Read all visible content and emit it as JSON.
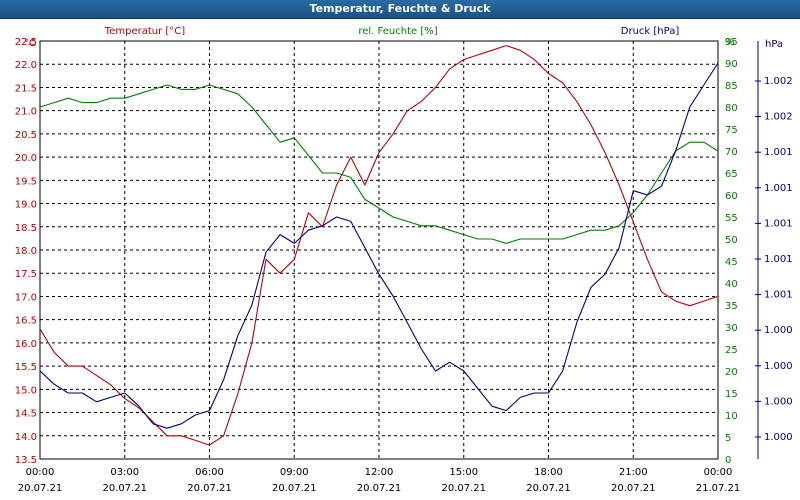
{
  "window": {
    "title": "Temperatur, Feuchte & Druck"
  },
  "chart_data": {
    "type": "line",
    "title": "Temperatur, Feuchte & Druck",
    "grid": true,
    "x_range": [
      "00:00",
      "24:00"
    ],
    "x_ticks": [
      {
        "time": "00:00",
        "date": "20.07.21"
      },
      {
        "time": "03:00",
        "date": "20.07.21"
      },
      {
        "time": "06:00",
        "date": "20.07.21"
      },
      {
        "time": "09:00",
        "date": "20.07.21"
      },
      {
        "time": "12:00",
        "date": "20.07.21"
      },
      {
        "time": "15:00",
        "date": "20.07.21"
      },
      {
        "time": "18:00",
        "date": "20.07.21"
      },
      {
        "time": "21:00",
        "date": "20.07.21"
      },
      {
        "time": "00:00",
        "date": "21.07.21"
      }
    ],
    "axes": {
      "temperature": {
        "label": "Temperatur [°C]",
        "unit": "°C",
        "color": "#c00000",
        "range": [
          13.5,
          22.5
        ],
        "ticks": [
          "13.5",
          "14.0",
          "14.5",
          "15.0",
          "15.5",
          "16.0",
          "16.5",
          "17.0",
          "17.5",
          "18.0",
          "18.5",
          "19.0",
          "19.5",
          "20.0",
          "20.5",
          "21.0",
          "21.5",
          "22.0",
          "22.5"
        ]
      },
      "humidity": {
        "label": "rel. Feuchte [%]",
        "unit": "%",
        "color": "#008000",
        "range": [
          0,
          95
        ],
        "ticks": [
          "0",
          "5",
          "10",
          "15",
          "20",
          "25",
          "30",
          "35",
          "40",
          "45",
          "50",
          "55",
          "60",
          "65",
          "70",
          "75",
          "80",
          "85",
          "90",
          "95"
        ]
      },
      "pressure": {
        "label": "Druck [hPa]",
        "unit": "hPa",
        "color": "#000080",
        "tick_labels": [
          "1.000",
          "1.000",
          "1.000",
          "1.000",
          "1.001",
          "1.001",
          "1.001",
          "1.001",
          "1.001",
          "1.002",
          "1.002"
        ]
      }
    },
    "series": [
      {
        "name": "Temperatur [°C]",
        "axis": "temperature",
        "color": "#c00000",
        "x_hours": [
          0,
          0.5,
          1,
          1.5,
          2,
          2.5,
          3,
          3.5,
          4,
          4.5,
          5,
          5.5,
          6,
          6.5,
          7,
          7.5,
          8,
          8.5,
          9,
          9.5,
          10,
          10.5,
          11,
          11.5,
          12,
          12.5,
          13,
          13.5,
          14,
          14.5,
          15,
          15.5,
          16,
          16.5,
          17,
          17.5,
          18,
          18.5,
          19,
          19.5,
          20,
          20.5,
          21,
          21.5,
          22,
          22.5,
          23,
          23.5,
          24
        ],
        "values": [
          16.3,
          15.8,
          15.5,
          15.5,
          15.3,
          15.1,
          14.8,
          14.6,
          14.3,
          14.0,
          14.0,
          13.9,
          13.8,
          14.0,
          14.9,
          16.0,
          17.8,
          17.5,
          17.8,
          18.8,
          18.5,
          19.4,
          20.0,
          19.4,
          20.1,
          20.5,
          21.0,
          21.2,
          21.5,
          21.9,
          22.1,
          22.2,
          22.3,
          22.4,
          22.3,
          22.1,
          21.8,
          21.6,
          21.2,
          20.7,
          20.1,
          19.4,
          18.6,
          17.8,
          17.1,
          16.9,
          16.8,
          16.9,
          17.0
        ]
      },
      {
        "name": "rel. Feuchte [%]",
        "axis": "humidity",
        "color": "#008000",
        "x_hours": [
          0,
          0.5,
          1,
          1.5,
          2,
          2.5,
          3,
          3.5,
          4,
          4.5,
          5,
          5.5,
          6,
          6.5,
          7,
          7.5,
          8,
          8.5,
          9,
          9.5,
          10,
          10.5,
          11,
          11.5,
          12,
          12.5,
          13,
          13.5,
          14,
          14.5,
          15,
          15.5,
          16,
          16.5,
          17,
          17.5,
          18,
          18.5,
          19,
          19.5,
          20,
          20.5,
          21,
          21.5,
          22,
          22.5,
          23,
          23.5,
          24
        ],
        "values": [
          80,
          81,
          82,
          81,
          81,
          82,
          82,
          83,
          84,
          85,
          84,
          84,
          85,
          84,
          83,
          80,
          76,
          72,
          73,
          69,
          65,
          65,
          64,
          59,
          57,
          55,
          54,
          53,
          53,
          52,
          51,
          50,
          50,
          49,
          50,
          50,
          50,
          50,
          51,
          52,
          52,
          53,
          56,
          60,
          65,
          70,
          72,
          72,
          70
        ]
      },
      {
        "name": "Druck [hPa]",
        "axis": "pressure",
        "color": "#000080",
        "x_hours": [
          0,
          0.5,
          1,
          1.5,
          2,
          2.5,
          3,
          3.5,
          4,
          4.5,
          5,
          5.5,
          6,
          6.5,
          7,
          7.5,
          8,
          8.5,
          9,
          9.5,
          10,
          10.5,
          11,
          11.5,
          12,
          12.5,
          13,
          13.5,
          14,
          14.5,
          15,
          15.5,
          16,
          16.5,
          17,
          17.5,
          18,
          18.5,
          19,
          19.5,
          20,
          20.5,
          21,
          21.5,
          22,
          22.5,
          23,
          23.5,
          24
        ],
        "values": [
          20,
          17,
          15,
          15,
          13,
          14,
          15,
          12,
          8,
          7,
          8,
          10,
          11,
          18,
          28,
          35,
          47,
          51,
          49,
          52,
          53,
          55,
          54,
          48,
          42,
          37,
          31,
          25,
          20,
          22,
          20,
          16,
          12,
          11,
          14,
          15,
          15,
          20,
          31,
          39,
          42,
          48,
          61,
          60,
          62,
          70,
          80,
          85,
          90
        ]
      }
    ]
  }
}
